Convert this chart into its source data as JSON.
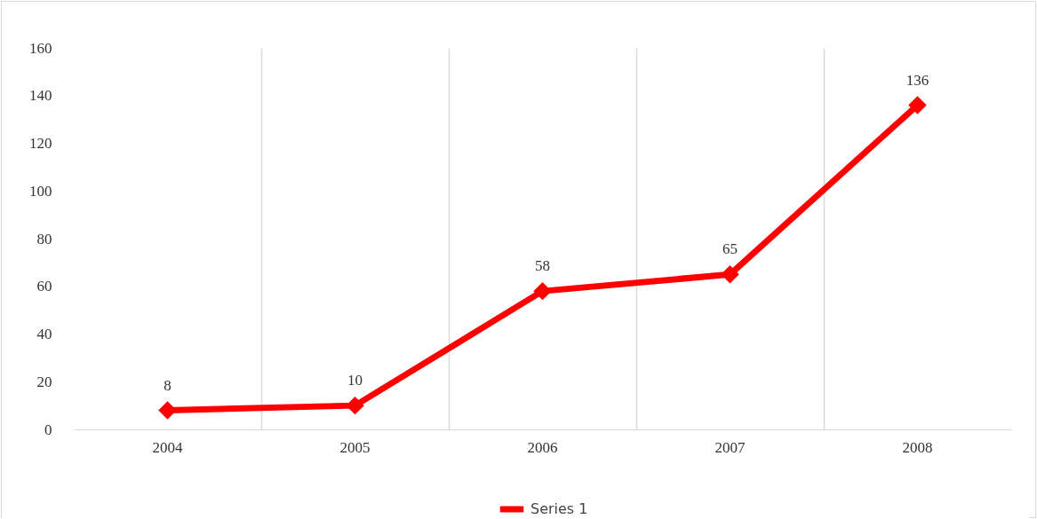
{
  "chart_data": {
    "type": "line",
    "categories": [
      "2004",
      "2005",
      "2006",
      "2007",
      "2008"
    ],
    "series": [
      {
        "name": "Series 1",
        "color": "#ff0000",
        "values": [
          8,
          10,
          58,
          65,
          136
        ]
      }
    ],
    "ylim": [
      0,
      160
    ],
    "yticks": [
      0,
      20,
      40,
      60,
      80,
      100,
      120,
      140,
      160
    ],
    "grid": "x",
    "legend": "bottom",
    "marker": "diamond",
    "line_style": "solid",
    "data_labels": true
  }
}
